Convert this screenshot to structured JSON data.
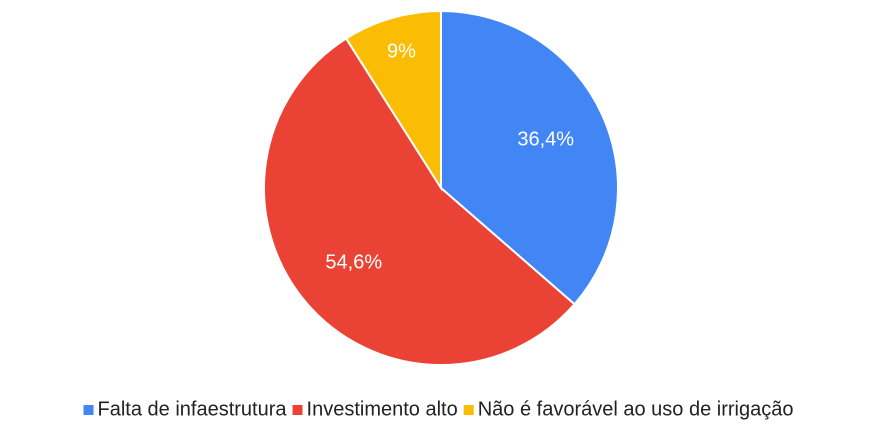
{
  "chart_data": {
    "type": "pie",
    "categories": [
      "Falta de infaestrutura",
      "Investimento alto",
      "Não é favorável ao uso de irrigação"
    ],
    "values": [
      36.4,
      54.6,
      9
    ],
    "value_labels": [
      "36,4%",
      "54,6%",
      "9%"
    ],
    "colors": [
      "#4285f4",
      "#ea4335",
      "#fbbc04"
    ],
    "legend": "bottom"
  }
}
